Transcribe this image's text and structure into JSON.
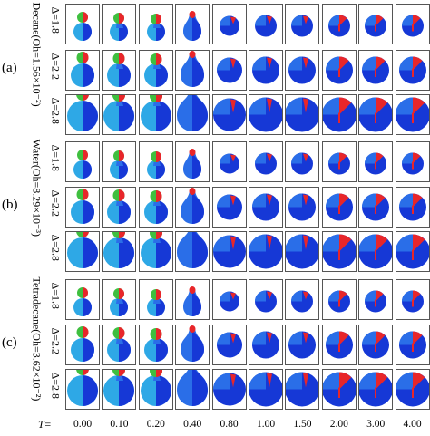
{
  "groups": [
    {
      "letter": "(a)",
      "fluid": "Decane(Oh=1.56×10⁻²)"
    },
    {
      "letter": "(b)",
      "fluid": "Water(Oh=8.29×10⁻³)"
    },
    {
      "letter": "(c)",
      "fluid": "Tetradecane(Oh=3.62×10⁻²)"
    }
  ],
  "deltas": [
    "Δ=1.8",
    "Δ=2.2",
    "Δ=2.8"
  ],
  "time_prefix": "T=",
  "times": [
    "0.00",
    "0.10",
    "0.20",
    "0.40",
    "0.80",
    "1.00",
    "1.50",
    "2.00",
    "3.00",
    "4.00"
  ],
  "colors": {
    "dark_blue": "#1638d6",
    "mid_blue": "#2a6ee8",
    "light_blue": "#2ea8e6",
    "cyan": "#2fd6df",
    "green": "#3fbf3f",
    "red": "#e8262a",
    "border": "#555555"
  }
}
